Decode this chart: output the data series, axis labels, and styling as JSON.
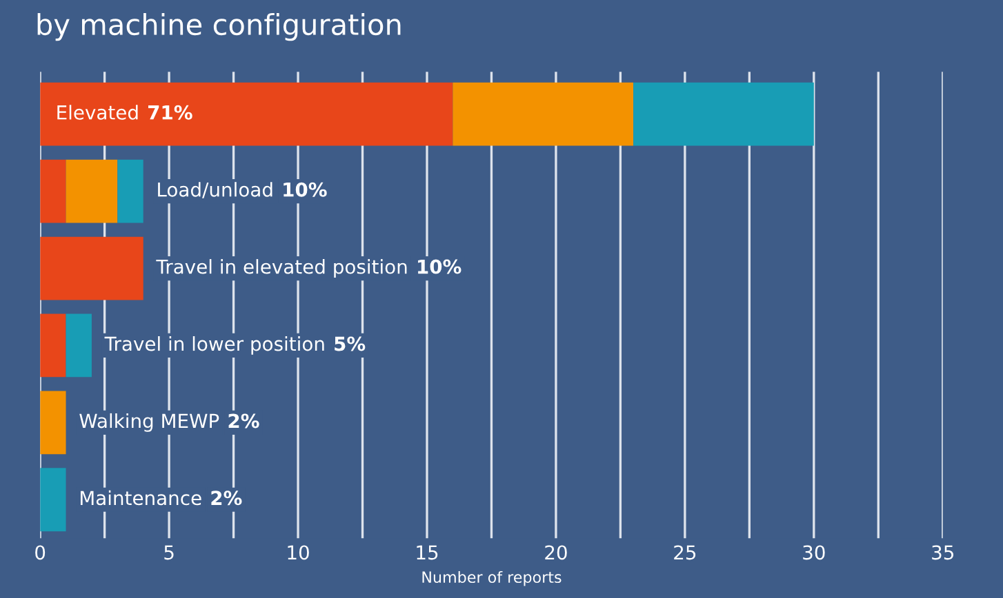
{
  "chart_data": {
    "type": "bar",
    "orientation": "horizontal",
    "stacked": true,
    "title": "by machine configuration",
    "xlabel": "Number of reports",
    "categories": [
      "Elevated",
      "Load/unload",
      "Travel in elevated position",
      "Travel in lower position",
      "Walking MEWP",
      "Maintenance"
    ],
    "series": [
      {
        "color": "#e8461a",
        "values": [
          16,
          1,
          4,
          1,
          0,
          0
        ]
      },
      {
        "color": "#f39200",
        "values": [
          7,
          2,
          0,
          0,
          1,
          0
        ]
      },
      {
        "color": "#189db5",
        "values": [
          7,
          1,
          0,
          1,
          0,
          1
        ]
      }
    ],
    "annotations": [
      "71%",
      "10%",
      "10%",
      "5%",
      "2%",
      "2%"
    ],
    "xlim": [
      0,
      35
    ],
    "xticks": [
      0,
      {
        "value": 2.5,
        "label": null
      },
      5,
      {
        "value": 7.5,
        "label": null
      },
      10,
      {
        "value": 12.5,
        "label": null
      },
      15,
      {
        "value": 17.5,
        "label": null
      },
      20,
      {
        "value": 22.5,
        "label": null
      },
      25,
      {
        "value": 27.5,
        "label": null
      },
      30,
      {
        "value": 32.5,
        "label": null
      },
      35
    ],
    "grid": "x",
    "tick_labels": "x"
  }
}
